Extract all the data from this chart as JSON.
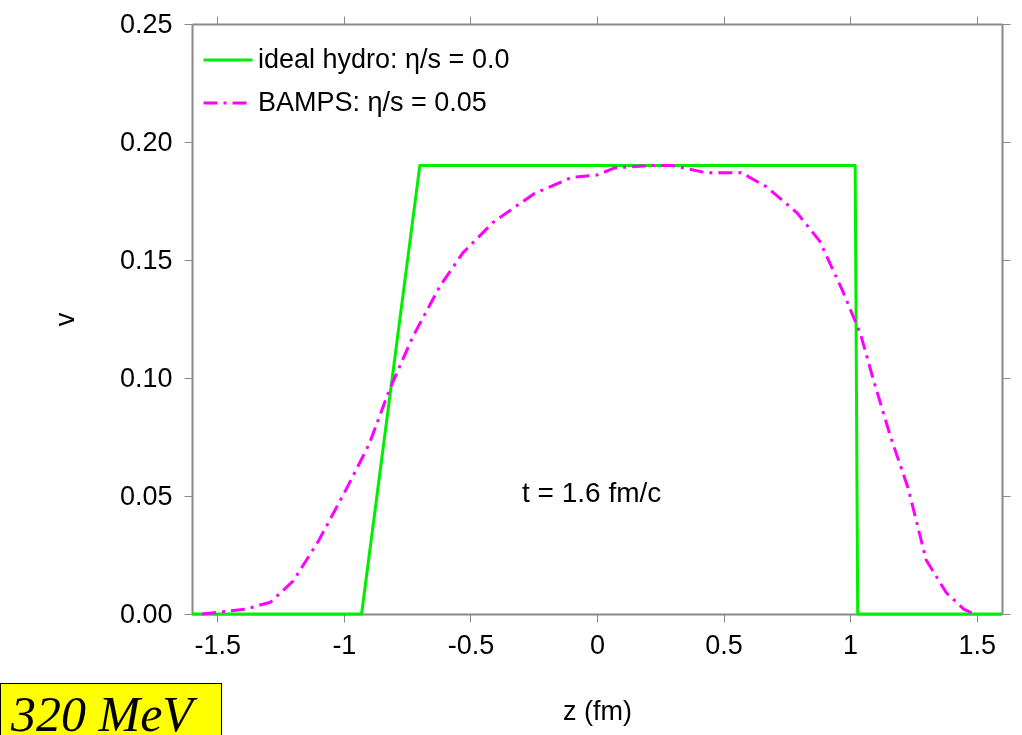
{
  "chart_data": {
    "type": "line",
    "xlabel": "z (fm)",
    "ylabel": "v",
    "xlim": [
      -1.6,
      1.6
    ],
    "ylim": [
      0,
      0.25
    ],
    "xticks": [
      -1.5,
      -1,
      -0.5,
      0,
      0.5,
      1,
      1.5
    ],
    "yticks": [
      {
        "value": 0,
        "label": "0.00"
      },
      {
        "value": 0.05,
        "label": "0.05"
      },
      {
        "value": 0.1,
        "label": "0.10"
      },
      {
        "value": 0.15,
        "label": "0.15"
      },
      {
        "value": 0.2,
        "label": "0.20"
      },
      {
        "value": 0.25,
        "label": "0.25"
      }
    ],
    "grid": false,
    "legend": "top left",
    "marker": "none",
    "annotations": [
      "t = 1.6 fm/c",
      "320 MeV"
    ],
    "series": [
      {
        "name": "ideal hydro: η/s = 0.0",
        "color": "#00ee00",
        "line_style": "solid",
        "x": [
          -1.6,
          -0.93,
          -0.7,
          1.02,
          1.03,
          1.6
        ],
        "values": [
          0,
          0,
          0.19,
          0.19,
          0,
          0
        ]
      },
      {
        "name": "BAMPS: η/s = 0.05",
        "color": "#ff00ff",
        "line_style": "dashed",
        "x": [
          -1.56,
          -1.39,
          -1.29,
          -1.2,
          -1.1,
          -0.99,
          -0.9,
          -0.82,
          -0.73,
          -0.62,
          -0.53,
          -0.41,
          -0.25,
          -0.1,
          0,
          0.07,
          0.2,
          0.3,
          0.43,
          0.57,
          0.67,
          0.79,
          0.88,
          0.97,
          1.04,
          1.09,
          1.16,
          1.23,
          1.3,
          1.38,
          1.45,
          1.49
        ],
        "values": [
          0,
          0.002,
          0.005,
          0.014,
          0.031,
          0.053,
          0.072,
          0.095,
          0.117,
          0.139,
          0.153,
          0.166,
          0.178,
          0.185,
          0.186,
          0.189,
          0.19,
          0.19,
          0.187,
          0.187,
          0.181,
          0.17,
          0.158,
          0.137,
          0.119,
          0.1,
          0.075,
          0.053,
          0.023,
          0.009,
          0.002,
          0
        ]
      }
    ]
  }
}
